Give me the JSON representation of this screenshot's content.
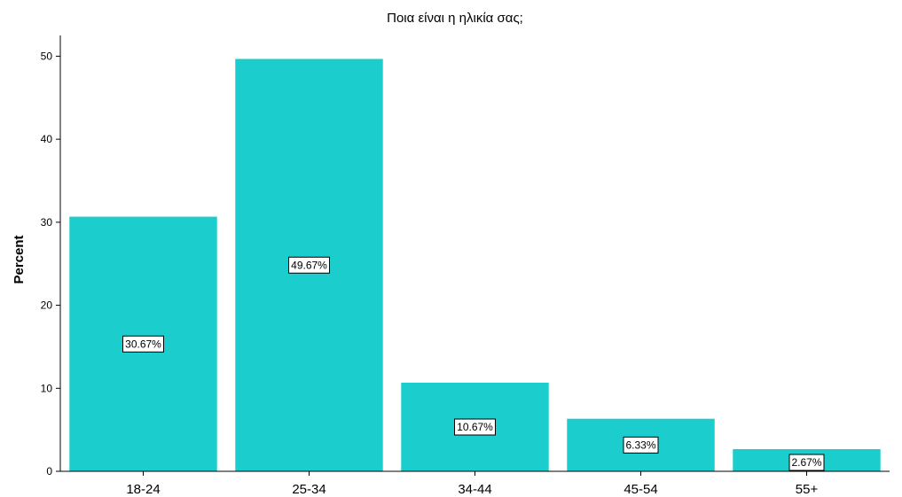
{
  "chart_data": {
    "type": "bar",
    "title": "Ποια είναι η ηλικία σας;",
    "xlabel": "",
    "ylabel": "Percent",
    "categories": [
      "18-24",
      "25-34",
      "34-44",
      "45-54",
      "55+"
    ],
    "values": [
      30.67,
      49.67,
      10.67,
      6.33,
      2.67
    ],
    "data_labels": [
      "30.67%",
      "49.67%",
      "10.67%",
      "6.33%",
      "2.67%"
    ],
    "yticks": [
      0,
      10,
      20,
      30,
      40,
      50
    ],
    "ylim": [
      0,
      52.5
    ],
    "grid": false,
    "legend": "none",
    "colors": {
      "bar": "#1BCDCD",
      "axis": "#000000",
      "label_box_fill": "#ffffff",
      "label_box_stroke": "#000000"
    }
  }
}
